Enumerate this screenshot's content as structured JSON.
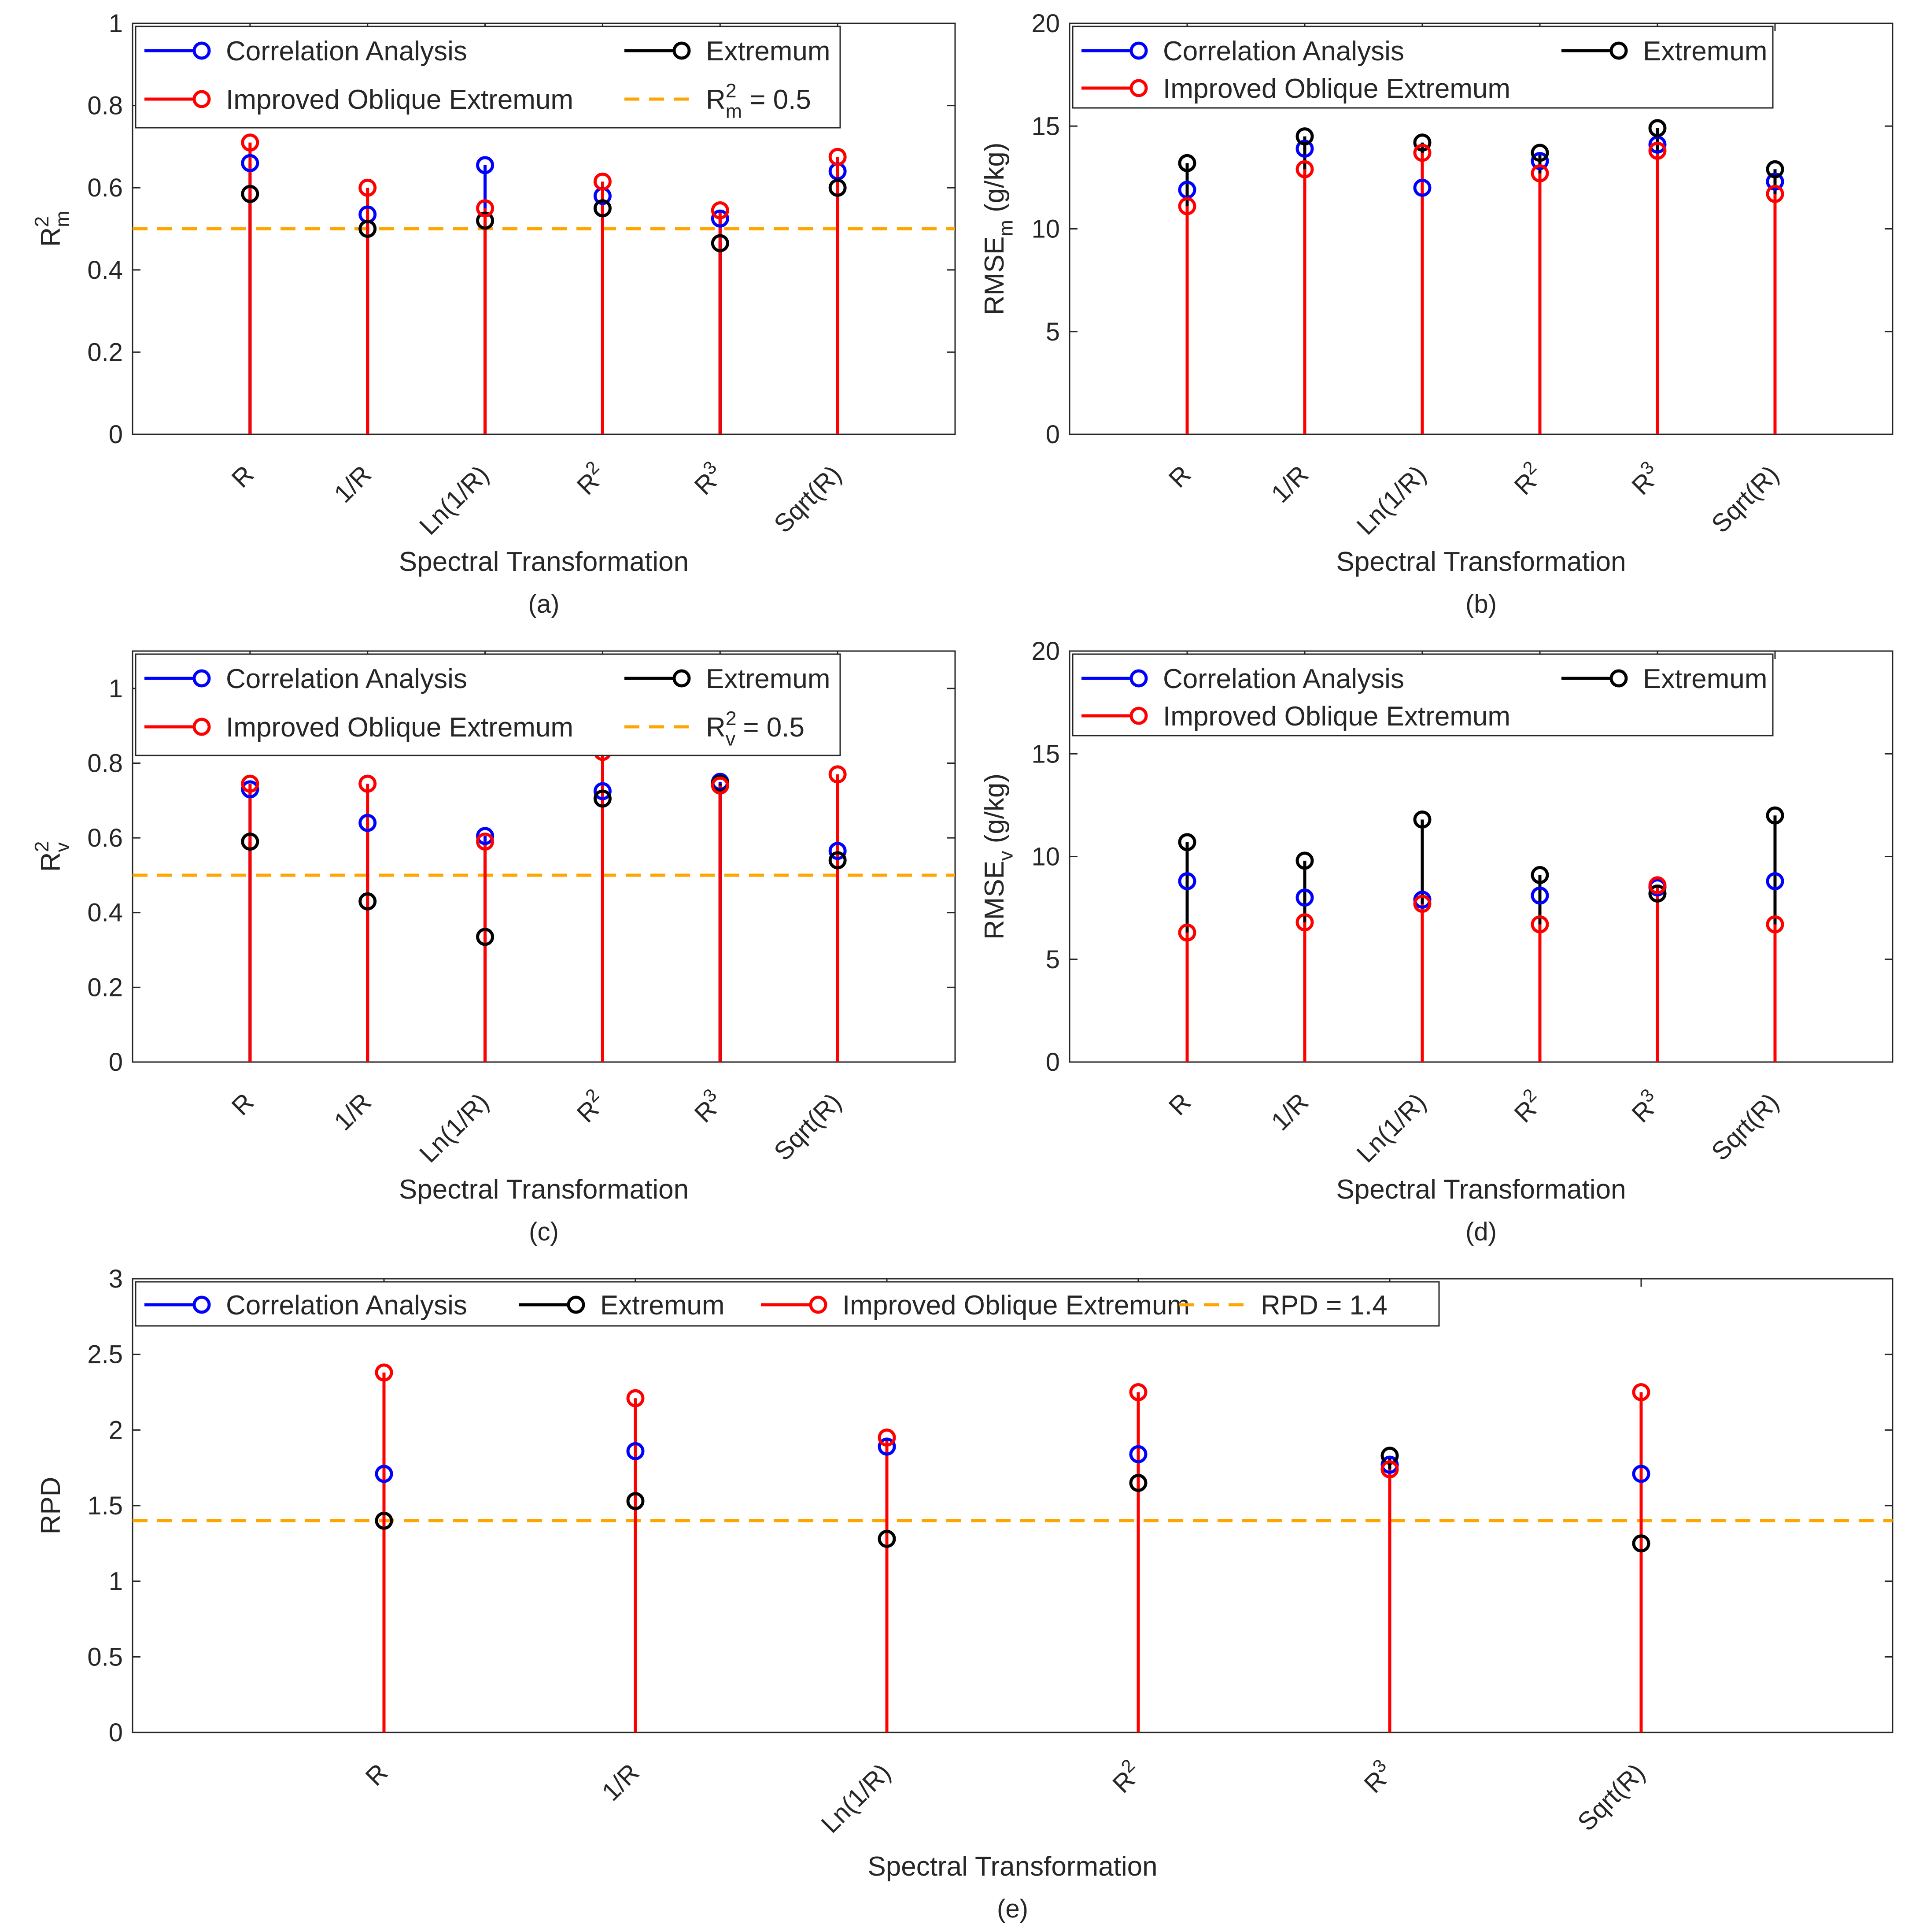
{
  "figure": {
    "categories": [
      "R",
      "1/R",
      "Ln(1/R)",
      "R^2",
      "R^3",
      "Sqrt(R)"
    ],
    "xlabel": "Spectral Transformation",
    "colors": {
      "ca": "#0000ff",
      "ex": "#000000",
      "ioe": "#ff0000",
      "threshold": "#ffa500",
      "axis": "#262626",
      "grid": "#dcdcdc"
    },
    "legend_labels": {
      "ca": "Correlation Analysis",
      "ex": "Extremum",
      "ioe": "Improved Oblique Extremum"
    }
  },
  "chart_data": [
    {
      "id": "a",
      "type": "stem",
      "caption": "(a)",
      "ylabel": "R^2_m",
      "ylim": [
        0,
        1
      ],
      "yticks": [
        0,
        0.2,
        0.4,
        0.6,
        0.8,
        1
      ],
      "threshold": 0.5,
      "threshold_label": "R^2_m = 0.5",
      "legend_position": "top-left",
      "series": [
        {
          "key": "ca",
          "name": "Correlation Analysis",
          "values": [
            0.66,
            0.535,
            0.655,
            0.58,
            0.525,
            0.64
          ]
        },
        {
          "key": "ex",
          "name": "Extremum",
          "values": [
            0.585,
            0.5,
            0.52,
            0.55,
            0.465,
            0.6
          ]
        },
        {
          "key": "ioe",
          "name": "Improved Oblique Extremum",
          "values": [
            0.71,
            0.6,
            0.55,
            0.615,
            0.545,
            0.675
          ]
        }
      ]
    },
    {
      "id": "b",
      "type": "stem",
      "caption": "(b)",
      "ylabel": "RMSE_m (g/kg)",
      "ylim": [
        0,
        20
      ],
      "yticks": [
        0,
        5,
        10,
        15,
        20
      ],
      "threshold": null,
      "legend_position": "top-left",
      "series": [
        {
          "key": "ca",
          "name": "Correlation Analysis",
          "values": [
            11.9,
            13.9,
            12.0,
            13.3,
            14.1,
            12.3
          ]
        },
        {
          "key": "ex",
          "name": "Extremum",
          "values": [
            13.2,
            14.5,
            14.2,
            13.7,
            14.9,
            12.9
          ]
        },
        {
          "key": "ioe",
          "name": "Improved Oblique Extremum",
          "values": [
            11.1,
            12.9,
            13.7,
            12.7,
            13.8,
            11.7
          ]
        }
      ]
    },
    {
      "id": "c",
      "type": "stem",
      "caption": "(c)",
      "ylabel": "R^2_v",
      "ylim": [
        0,
        1.1
      ],
      "yticks": [
        0,
        0.2,
        0.4,
        0.6,
        0.8,
        1
      ],
      "threshold": 0.5,
      "threshold_label": "R^2_v = 0.5",
      "legend_position": "top-left",
      "series": [
        {
          "key": "ca",
          "name": "Correlation Analysis",
          "values": [
            0.73,
            0.64,
            0.605,
            0.725,
            0.75,
            0.565
          ]
        },
        {
          "key": "ex",
          "name": "Extremum",
          "values": [
            0.59,
            0.43,
            0.335,
            0.705,
            0.745,
            0.54
          ]
        },
        {
          "key": "ioe",
          "name": "Improved Oblique Extremum",
          "values": [
            0.745,
            0.745,
            0.59,
            0.83,
            0.74,
            0.77
          ]
        }
      ]
    },
    {
      "id": "d",
      "type": "stem",
      "caption": "(d)",
      "ylabel": "RMSE_v (g/kg)",
      "ylim": [
        0,
        20
      ],
      "yticks": [
        0,
        5,
        10,
        15,
        20
      ],
      "threshold": null,
      "legend_position": "top-left",
      "series": [
        {
          "key": "ca",
          "name": "Correlation Analysis",
          "values": [
            8.8,
            8.0,
            7.9,
            8.1,
            8.5,
            8.8
          ]
        },
        {
          "key": "ex",
          "name": "Extremum",
          "values": [
            10.7,
            9.8,
            11.8,
            9.1,
            8.2,
            12.0
          ]
        },
        {
          "key": "ioe",
          "name": "Improved Oblique Extremum",
          "values": [
            6.3,
            6.8,
            7.7,
            6.7,
            8.6,
            6.7
          ]
        }
      ]
    },
    {
      "id": "e",
      "type": "stem",
      "caption": "(e)",
      "ylabel": "RPD",
      "ylim": [
        0,
        3
      ],
      "yticks": [
        0,
        0.5,
        1,
        1.5,
        2,
        2.5,
        3
      ],
      "threshold": 1.4,
      "threshold_label": "RPD = 1.4",
      "legend_position": "top-left",
      "series": [
        {
          "key": "ca",
          "name": "Correlation Analysis",
          "values": [
            1.71,
            1.86,
            1.89,
            1.84,
            1.77,
            1.71
          ]
        },
        {
          "key": "ex",
          "name": "Extremum",
          "values": [
            1.4,
            1.53,
            1.28,
            1.65,
            1.83,
            1.25
          ]
        },
        {
          "key": "ioe",
          "name": "Improved Oblique Extremum",
          "values": [
            2.38,
            2.21,
            1.95,
            2.25,
            1.74,
            2.25
          ]
        }
      ]
    }
  ]
}
